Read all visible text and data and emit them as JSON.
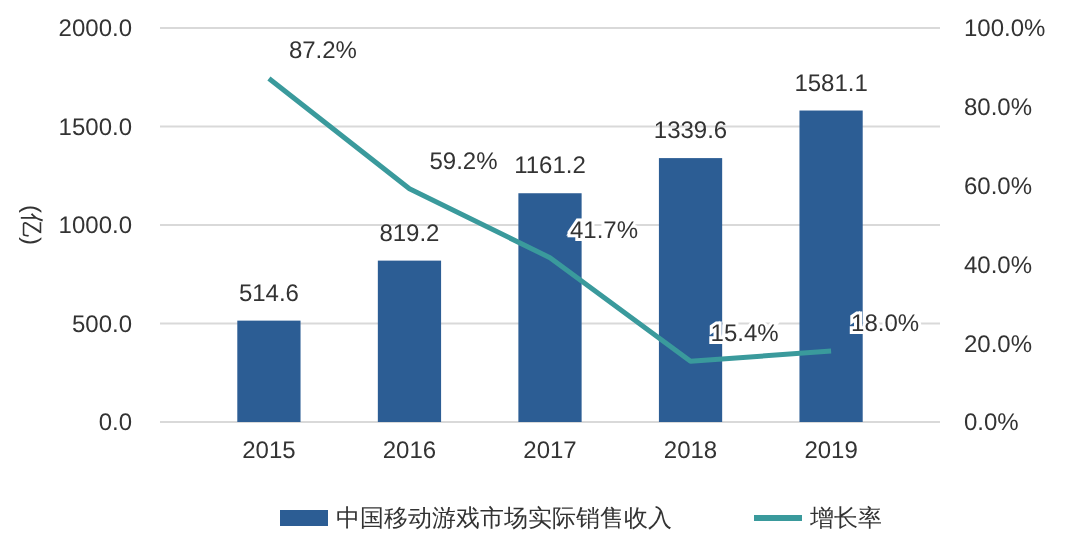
{
  "chart_data": {
    "type": "bar",
    "ylabel": "(亿)",
    "categories": [
      "2015",
      "2016",
      "2017",
      "2018",
      "2019"
    ],
    "series": [
      {
        "name": "中国移动游戏市场实际销售收入",
        "color": "#2c5d94",
        "values": [
          514.6,
          819.2,
          1161.2,
          1339.6,
          1581.1
        ],
        "value_labels": [
          "514.6",
          "819.2",
          "1161.2",
          "1339.6",
          "1581.1"
        ]
      },
      {
        "name": "增长率",
        "type": "line",
        "axis": "y2",
        "color": "#3a9a9c",
        "values": [
          87.2,
          59.2,
          41.7,
          15.4,
          18.0
        ],
        "value_labels": [
          "87.2%",
          "59.2%",
          "41.7%",
          "15.4%",
          "18.0%"
        ]
      }
    ],
    "ylim": [
      0,
      2000
    ],
    "yticks": [
      {
        "value": 0,
        "label": "0.0"
      },
      {
        "value": 500,
        "label": "500.0"
      },
      {
        "value": 1000,
        "label": "1000.0"
      },
      {
        "value": 1500,
        "label": "1500.0"
      },
      {
        "value": 2000,
        "label": "2000.0"
      }
    ],
    "y2lim": [
      0,
      100
    ],
    "y2ticks": [
      {
        "value": 0,
        "label": "0.0%"
      },
      {
        "value": 20,
        "label": "20.0%"
      },
      {
        "value": 40,
        "label": "40.0%"
      },
      {
        "value": 60,
        "label": "60.0%"
      },
      {
        "value": 80,
        "label": "80.0%"
      },
      {
        "value": 100,
        "label": "100.0%"
      }
    ],
    "grid": "y",
    "legend": "bottom",
    "marker": "none",
    "line_style": "solid"
  }
}
